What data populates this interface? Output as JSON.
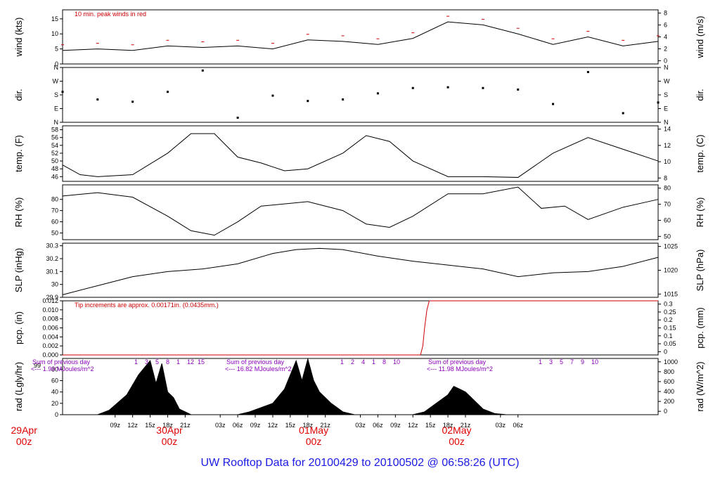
{
  "title": "UW Rooftop Data for 20100429  to  20100502 @ 06:58:26  (UTC)",
  "chart_data": [
    {
      "type": "line",
      "name": "wind",
      "ylabel": "wind (kts)",
      "ylabel_right": "wind (m/s)",
      "ylim": [
        0,
        18
      ],
      "yticks": [
        0,
        5,
        10,
        15
      ],
      "yticks_right": [
        0,
        2,
        4,
        6,
        8
      ],
      "note": "10 min. peak winds in red",
      "x_hours": [
        0,
        6,
        12,
        18,
        24,
        30,
        36,
        42,
        48,
        54,
        60,
        66,
        72,
        78,
        84,
        90,
        96,
        102
      ],
      "y": [
        4.5,
        5.0,
        4.5,
        6.0,
        5.5,
        6.0,
        5.0,
        8.0,
        7.5,
        6.5,
        8.5,
        14.0,
        13.0,
        10.0,
        6.5,
        9.0,
        6.0,
        7.5
      ],
      "peak_color": "#cc0000"
    },
    {
      "type": "scatter",
      "name": "direction",
      "ylabel": "dir.",
      "ylabel_right": "dir.",
      "ylim": [
        0,
        360
      ],
      "yticks": [
        0,
        90,
        180,
        270,
        360
      ],
      "ytick_labels": [
        "N",
        "E",
        "S",
        "W",
        "N"
      ],
      "x_hours": [
        0,
        6,
        12,
        18,
        24,
        30,
        36,
        42,
        48,
        54,
        60,
        66,
        72,
        78,
        84,
        90,
        96,
        102
      ],
      "y": [
        200,
        150,
        135,
        200,
        340,
        30,
        175,
        140,
        150,
        190,
        225,
        230,
        225,
        215,
        120,
        330,
        60,
        130
      ]
    },
    {
      "type": "line",
      "name": "temperature",
      "ylabel": "temp. (F)",
      "ylabel_right": "temp. (C)",
      "ylim": [
        44.8,
        59
      ],
      "yticks": [
        46,
        48,
        50,
        52,
        54,
        56,
        58
      ],
      "yticks_right": [
        8,
        10,
        12,
        14
      ],
      "x_hours": [
        0,
        3,
        6,
        12,
        18,
        22,
        26,
        30,
        34,
        38,
        42,
        48,
        52,
        56,
        60,
        66,
        72,
        78,
        84,
        90,
        96,
        102
      ],
      "y": [
        49.0,
        46.5,
        46.0,
        46.5,
        52.0,
        57.0,
        57.0,
        51.0,
        49.5,
        47.5,
        48.0,
        52.0,
        56.5,
        55.0,
        50.0,
        46.0,
        46.0,
        45.8,
        52.0,
        56.0,
        53.0,
        50.0
      ]
    },
    {
      "type": "line",
      "name": "relative humidity",
      "ylabel": "RH (%)",
      "ylabel_right": "RH (%)",
      "ylim": [
        44,
        93
      ],
      "yticks": [
        50,
        60,
        70,
        80
      ],
      "yticks_right": [
        50,
        60,
        70,
        80
      ],
      "x_hours": [
        0,
        6,
        12,
        18,
        22,
        26,
        30,
        34,
        42,
        48,
        52,
        56,
        60,
        66,
        72,
        78,
        82,
        86,
        90,
        96,
        102
      ],
      "y": [
        83,
        86,
        82,
        65,
        52,
        48,
        60,
        74,
        78,
        70,
        58,
        55,
        65,
        85,
        85,
        91,
        72,
        74,
        62,
        73,
        80
      ]
    },
    {
      "type": "line",
      "name": "sea level pressure",
      "ylabel": "SLP (inHg)",
      "ylabel_right": "SLP (hPa)",
      "ylim": [
        29.9,
        30.32
      ],
      "yticks": [
        29.9,
        30.0,
        30.1,
        30.2,
        30.3
      ],
      "yticks_right": [
        1015,
        1020,
        1025
      ],
      "x_hours": [
        0,
        6,
        12,
        18,
        24,
        30,
        36,
        40,
        44,
        48,
        54,
        60,
        66,
        72,
        78,
        84,
        90,
        96,
        102
      ],
      "y": [
        29.92,
        29.99,
        30.06,
        30.1,
        30.12,
        30.16,
        30.24,
        30.27,
        30.28,
        30.27,
        30.22,
        30.18,
        30.15,
        30.12,
        30.06,
        30.09,
        30.1,
        30.14,
        30.21
      ]
    },
    {
      "type": "line",
      "name": "precipitation",
      "ylabel": "pcp. (in)",
      "ylabel_right": "pcp. (mm)",
      "ylim": [
        0,
        0.012
      ],
      "yticks": [
        0,
        0.002,
        0.004,
        0.006,
        0.008,
        0.01,
        0.012
      ],
      "ytick_labels": [
        "0.000",
        "0.002",
        "0.004",
        "0.006",
        "0.008",
        "0.010",
        "0.012"
      ],
      "yticks_right": [
        0,
        0.05,
        0.1,
        0.15,
        0.2,
        0.25,
        0.3
      ],
      "yticks_right_labels": [
        "0",
        "0.05",
        "0.1",
        "0.15",
        "0.2",
        "0.25",
        "0.3"
      ],
      "note": "Tip increments are approx. 0.00171in. (0.0435mm.)",
      "x_hours": [
        0,
        61.3,
        61.7,
        62.0,
        62.4,
        62.8,
        102
      ],
      "y": [
        0,
        0,
        0.002,
        0.006,
        0.01,
        0.012,
        0.012
      ],
      "color": "#cc0000"
    },
    {
      "type": "area",
      "name": "solar radiation",
      "ylabel": "rad (Lgly/hr)",
      "ylabel_right": "rad (W/m^2)",
      "ylim": [
        0,
        99
      ],
      "yticks": [
        0,
        20,
        40,
        60,
        80
      ],
      "yticks_right": [
        0,
        200,
        400,
        600,
        800,
        1000
      ],
      "top_left_label": "99",
      "x_hours": [
        6,
        8,
        11,
        13,
        15,
        16,
        17,
        18,
        19,
        20,
        22,
        24,
        26,
        30,
        32,
        36,
        38,
        40,
        41,
        42,
        43,
        44,
        46,
        48,
        50,
        54,
        56,
        60,
        62,
        64,
        66,
        67,
        68,
        69,
        70,
        72,
        74,
        76,
        78,
        84
      ],
      "y": [
        0,
        8,
        35,
        70,
        95,
        55,
        90,
        40,
        30,
        10,
        0,
        0,
        0,
        0,
        5,
        20,
        45,
        95,
        60,
        98,
        60,
        40,
        20,
        5,
        0,
        0,
        0,
        0,
        5,
        20,
        35,
        50,
        45,
        40,
        30,
        10,
        2,
        0,
        0,
        0
      ],
      "day_sums": [
        {
          "label": "Sum of previous day",
          "value": "<--- 1.99 MJoules/m^2"
        },
        {
          "label": "Sum of previous day",
          "value": "<--- 16.82 MJoules/m^2"
        },
        {
          "label": "Sum of previous day",
          "value": "<--- 11.98 MJoules/m^2"
        }
      ],
      "hour_marks": [
        [
          "1",
          "3",
          "5",
          "8",
          "1",
          "12",
          "15"
        ],
        [
          "1",
          "2",
          "4",
          "1",
          "8",
          "10"
        ],
        [
          "1",
          "3",
          "5",
          "7",
          "9",
          "10"
        ]
      ]
    }
  ],
  "x_axis": {
    "tick_labels": [
      "09z",
      "12z",
      "15z",
      "18z",
      "21z",
      "03z",
      "06z",
      "09z",
      "12z",
      "15z",
      "18z",
      "21z",
      "03z",
      "06z",
      "09z",
      "12z",
      "15z",
      "18z",
      "21z",
      "03z",
      "06z"
    ],
    "tick_hours": [
      9,
      12,
      15,
      18,
      21,
      27,
      30,
      33,
      36,
      39,
      42,
      45,
      51,
      54,
      57,
      60,
      63,
      66,
      69,
      75,
      78
    ],
    "date_labels": [
      {
        "day": "29Apr",
        "time": "00z",
        "hour": -6.6
      },
      {
        "day": "30Apr",
        "time": "00z",
        "hour": 18.3
      },
      {
        "day": "01May",
        "time": "00z",
        "hour": 43.0
      },
      {
        "day": "02May",
        "time": "00z",
        "hour": 67.5
      }
    ],
    "date_color": "#dd0000"
  }
}
